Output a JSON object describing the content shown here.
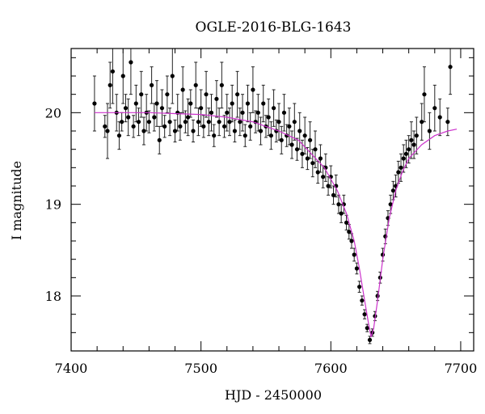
{
  "chart_data": {
    "type": "scatter",
    "title": "OGLE-2016-BLG-1643",
    "xlabel": "HJD - 2450000",
    "ylabel": "I magnitude",
    "xlim": [
      7400,
      7710
    ],
    "ylim": [
      20.7,
      17.4
    ],
    "y_inverted": true,
    "grid": false,
    "legend": "none",
    "x_ticks": [
      7400,
      7500,
      7600,
      7700
    ],
    "x_tick_labels": [
      "7400",
      "7500",
      "7600",
      "7700"
    ],
    "y_ticks": [
      18,
      19,
      20
    ],
    "y_tick_labels": [
      "18",
      "19",
      "20"
    ],
    "x_minor_step": 20,
    "y_minor_step": 0.2,
    "colors": {
      "data": "#000000",
      "model": "#cc33cc"
    },
    "series": [
      {
        "kind": "points_with_errorbars",
        "points": [
          [
            7418,
            20.1,
            0.3
          ],
          [
            7426,
            19.85,
            0.12
          ],
          [
            7428,
            19.8,
            0.3
          ],
          [
            7430,
            20.3,
            0.25
          ],
          [
            7432,
            20.45,
            0.35
          ],
          [
            7435,
            20.0,
            0.2
          ],
          [
            7437,
            19.75,
            0.15
          ],
          [
            7439,
            19.9,
            0.1
          ],
          [
            7440,
            20.4,
            0.3
          ],
          [
            7442,
            20.05,
            0.15
          ],
          [
            7444,
            19.95,
            0.2
          ],
          [
            7446,
            20.55,
            0.35
          ],
          [
            7448,
            19.85,
            0.12
          ],
          [
            7450,
            20.1,
            0.2
          ],
          [
            7452,
            19.9,
            0.15
          ],
          [
            7454,
            20.2,
            0.25
          ],
          [
            7456,
            19.8,
            0.15
          ],
          [
            7458,
            20.0,
            0.2
          ],
          [
            7460,
            19.9,
            0.12
          ],
          [
            7462,
            20.3,
            0.2
          ],
          [
            7464,
            19.95,
            0.15
          ],
          [
            7466,
            20.1,
            0.25
          ],
          [
            7468,
            19.7,
            0.15
          ],
          [
            7470,
            20.05,
            0.2
          ],
          [
            7472,
            19.85,
            0.12
          ],
          [
            7474,
            20.2,
            0.2
          ],
          [
            7476,
            19.9,
            0.15
          ],
          [
            7478,
            20.4,
            0.3
          ],
          [
            7480,
            19.8,
            0.12
          ],
          [
            7482,
            20.0,
            0.2
          ],
          [
            7484,
            19.85,
            0.15
          ],
          [
            7486,
            20.25,
            0.25
          ],
          [
            7488,
            19.9,
            0.12
          ],
          [
            7490,
            19.95,
            0.2
          ],
          [
            7492,
            20.1,
            0.15
          ],
          [
            7494,
            19.8,
            0.12
          ],
          [
            7496,
            20.3,
            0.25
          ],
          [
            7498,
            19.9,
            0.15
          ],
          [
            7500,
            20.05,
            0.2
          ],
          [
            7502,
            19.85,
            0.12
          ],
          [
            7504,
            20.2,
            0.25
          ],
          [
            7506,
            19.9,
            0.15
          ],
          [
            7508,
            20.0,
            0.2
          ],
          [
            7510,
            19.75,
            0.12
          ],
          [
            7512,
            20.15,
            0.2
          ],
          [
            7514,
            19.9,
            0.15
          ],
          [
            7516,
            20.3,
            0.25
          ],
          [
            7518,
            19.85,
            0.12
          ],
          [
            7520,
            20.0,
            0.2
          ],
          [
            7522,
            19.9,
            0.15
          ],
          [
            7524,
            20.1,
            0.2
          ],
          [
            7526,
            19.8,
            0.12
          ],
          [
            7528,
            20.2,
            0.25
          ],
          [
            7530,
            19.9,
            0.15
          ],
          [
            7532,
            20.0,
            0.2
          ],
          [
            7534,
            19.75,
            0.12
          ],
          [
            7536,
            20.1,
            0.2
          ],
          [
            7538,
            19.85,
            0.15
          ],
          [
            7540,
            20.25,
            0.25
          ],
          [
            7542,
            19.9,
            0.12
          ],
          [
            7544,
            20.0,
            0.2
          ],
          [
            7546,
            19.8,
            0.15
          ],
          [
            7548,
            20.1,
            0.2
          ],
          [
            7550,
            19.85,
            0.12
          ],
          [
            7552,
            19.95,
            0.2
          ],
          [
            7554,
            19.75,
            0.15
          ],
          [
            7556,
            20.05,
            0.2
          ],
          [
            7558,
            19.8,
            0.12
          ],
          [
            7560,
            19.9,
            0.2
          ],
          [
            7562,
            19.7,
            0.15
          ],
          [
            7564,
            20.0,
            0.2
          ],
          [
            7566,
            19.75,
            0.12
          ],
          [
            7568,
            19.85,
            0.2
          ],
          [
            7570,
            19.65,
            0.15
          ],
          [
            7572,
            19.9,
            0.2
          ],
          [
            7574,
            19.6,
            0.12
          ],
          [
            7576,
            19.8,
            0.2
          ],
          [
            7578,
            19.55,
            0.15
          ],
          [
            7580,
            19.75,
            0.2
          ],
          [
            7582,
            19.5,
            0.12
          ],
          [
            7584,
            19.7,
            0.2
          ],
          [
            7586,
            19.45,
            0.15
          ],
          [
            7588,
            19.6,
            0.2
          ],
          [
            7590,
            19.35,
            0.12
          ],
          [
            7592,
            19.5,
            0.15
          ],
          [
            7594,
            19.3,
            0.12
          ],
          [
            7596,
            19.4,
            0.15
          ],
          [
            7598,
            19.2,
            0.1
          ],
          [
            7600,
            19.3,
            0.12
          ],
          [
            7602,
            19.1,
            0.1
          ],
          [
            7604,
            19.2,
            0.12
          ],
          [
            7606,
            19.0,
            0.1
          ],
          [
            7608,
            18.9,
            0.1
          ],
          [
            7610,
            19.0,
            0.1
          ],
          [
            7612,
            18.8,
            0.08
          ],
          [
            7614,
            18.7,
            0.08
          ],
          [
            7616,
            18.6,
            0.08
          ],
          [
            7618,
            18.45,
            0.07
          ],
          [
            7620,
            18.3,
            0.06
          ],
          [
            7622,
            18.1,
            0.06
          ],
          [
            7624,
            17.95,
            0.05
          ],
          [
            7626,
            17.8,
            0.05
          ],
          [
            7628,
            17.65,
            0.04
          ],
          [
            7630,
            17.52,
            0.04
          ],
          [
            7632,
            17.6,
            0.04
          ],
          [
            7634,
            17.78,
            0.05
          ],
          [
            7636,
            18.0,
            0.05
          ],
          [
            7638,
            18.2,
            0.06
          ],
          [
            7640,
            18.45,
            0.07
          ],
          [
            7642,
            18.65,
            0.08
          ],
          [
            7644,
            18.85,
            0.08
          ],
          [
            7646,
            19.0,
            0.1
          ],
          [
            7648,
            19.15,
            0.1
          ],
          [
            7650,
            19.2,
            0.12
          ],
          [
            7652,
            19.35,
            0.12
          ],
          [
            7654,
            19.4,
            0.15
          ],
          [
            7656,
            19.5,
            0.15
          ],
          [
            7658,
            19.55,
            0.15
          ],
          [
            7660,
            19.6,
            0.15
          ],
          [
            7662,
            19.7,
            0.2
          ],
          [
            7664,
            19.65,
            0.15
          ],
          [
            7666,
            19.75,
            0.2
          ],
          [
            7670,
            19.9,
            0.2
          ],
          [
            7672,
            20.2,
            0.3
          ],
          [
            7676,
            19.8,
            0.2
          ],
          [
            7680,
            20.05,
            0.25
          ],
          [
            7684,
            19.95,
            0.2
          ],
          [
            7690,
            19.9,
            0.15
          ],
          [
            7692,
            20.5,
            0.3
          ]
        ]
      },
      {
        "kind": "model_curve",
        "points": [
          [
            7418,
            20.0
          ],
          [
            7440,
            20.0
          ],
          [
            7460,
            20.0
          ],
          [
            7480,
            19.99
          ],
          [
            7500,
            19.98
          ],
          [
            7520,
            19.95
          ],
          [
            7540,
            19.9
          ],
          [
            7560,
            19.8
          ],
          [
            7575,
            19.7
          ],
          [
            7585,
            19.55
          ],
          [
            7595,
            19.4
          ],
          [
            7605,
            19.15
          ],
          [
            7612,
            18.9
          ],
          [
            7618,
            18.6
          ],
          [
            7622,
            18.3
          ],
          [
            7626,
            17.95
          ],
          [
            7629,
            17.7
          ],
          [
            7631,
            17.55
          ],
          [
            7633,
            17.65
          ],
          [
            7636,
            17.95
          ],
          [
            7640,
            18.4
          ],
          [
            7645,
            18.85
          ],
          [
            7650,
            19.15
          ],
          [
            7655,
            19.35
          ],
          [
            7660,
            19.5
          ],
          [
            7670,
            19.65
          ],
          [
            7680,
            19.75
          ],
          [
            7690,
            19.8
          ],
          [
            7697,
            19.82
          ]
        ]
      }
    ]
  }
}
